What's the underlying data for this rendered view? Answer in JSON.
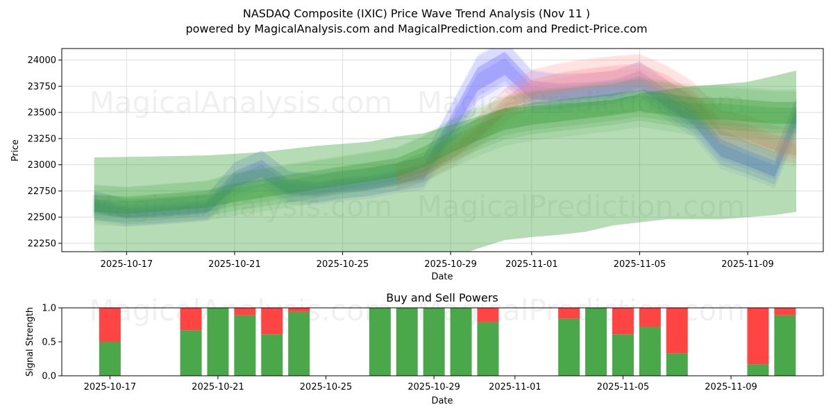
{
  "chart_data": [
    {
      "type": "area",
      "title": "NASDAQ Composite (IXIC) Price Wave Trend Analysis (Nov 11 )",
      "subtitle": "powered by MagicalAnalysis.com and MagicalPrediction.com and Predict-Price.com",
      "xlabel": "Date",
      "ylabel": "Price",
      "x_tick_labels": [
        "2025-10-17",
        "2025-10-21",
        "2025-10-25",
        "2025-10-29",
        "2025-11-01",
        "2025-11-05",
        "2025-11-09"
      ],
      "y_tick_labels": [
        "22250",
        "22500",
        "22750",
        "23000",
        "23250",
        "23500",
        "23750",
        "24000"
      ],
      "ylim": [
        22170,
        24110
      ],
      "grid": true,
      "watermarks": [
        "MagicalAnalysis.com",
        "MagicalPrediction.com",
        "MagicalAnalysis.com",
        "MagicalPrediction.com"
      ],
      "series": [
        {
          "name": "blue waves",
          "color": "#6666ff",
          "x": [
            0.8,
            2,
            3,
            4,
            5,
            6,
            7,
            8,
            9,
            10,
            11,
            12,
            13,
            14,
            15,
            16,
            17,
            18,
            19,
            20,
            21,
            22,
            23,
            24,
            25,
            26,
            26.8
          ],
          "center": [
            22600,
            22540,
            22550,
            22570,
            22590,
            22850,
            22950,
            22780,
            22760,
            22800,
            22820,
            22870,
            22920,
            23350,
            23800,
            23950,
            23700,
            23680,
            23700,
            23720,
            23800,
            23620,
            23450,
            23150,
            23050,
            22950,
            23450
          ],
          "spread": [
            90,
            80,
            80,
            80,
            80,
            110,
            120,
            100,
            90,
            90,
            90,
            90,
            100,
            140,
            160,
            160,
            130,
            120,
            110,
            110,
            120,
            120,
            120,
            120,
            110,
            110,
            120
          ]
        },
        {
          "name": "red waves",
          "color": "#ff8888",
          "x": [
            12,
            13,
            14,
            15,
            16,
            17,
            18,
            19,
            20,
            21,
            22,
            23,
            24,
            25,
            26,
            26.8
          ],
          "center": [
            22880,
            22950,
            23100,
            23300,
            23550,
            23720,
            23780,
            23820,
            23850,
            23870,
            23760,
            23600,
            23350,
            23300,
            23200,
            23150
          ],
          "spread": [
            80,
            80,
            90,
            100,
            110,
            120,
            120,
            120,
            120,
            120,
            120,
            120,
            110,
            110,
            110,
            110
          ]
        },
        {
          "name": "green waves",
          "color": "#2e9a2e",
          "x": [
            0.8,
            2,
            3,
            4,
            5,
            6,
            7,
            8,
            9,
            10,
            11,
            12,
            13,
            14,
            15,
            16,
            17,
            18,
            19,
            20,
            21,
            22,
            23,
            24,
            25,
            26,
            26.8
          ],
          "center": [
            22620,
            22600,
            22620,
            22640,
            22660,
            22720,
            22760,
            22800,
            22840,
            22880,
            22920,
            22960,
            23060,
            23200,
            23320,
            23420,
            23470,
            23500,
            23530,
            23560,
            23600,
            23560,
            23520,
            23520,
            23500,
            23480,
            23480
          ],
          "spread": [
            120,
            120,
            120,
            120,
            120,
            130,
            130,
            130,
            130,
            130,
            130,
            130,
            140,
            150,
            150,
            150,
            150,
            150,
            150,
            150,
            150,
            150,
            150,
            150,
            150,
            150,
            150
          ]
        },
        {
          "name": "wide green band",
          "color": "#2e9a2e",
          "x": [
            0.8,
            3,
            5,
            7,
            9,
            11,
            12,
            13,
            14,
            15,
            16,
            17,
            18,
            19,
            20,
            21,
            22,
            23,
            24,
            25,
            26,
            26.8
          ],
          "upper": [
            23070,
            23080,
            23090,
            23120,
            23180,
            23220,
            23270,
            23300,
            23380,
            23460,
            23540,
            23560,
            23580,
            23600,
            23620,
            23680,
            23720,
            23750,
            23770,
            23790,
            23850,
            23900
          ],
          "lower": [
            22180,
            22150,
            22100,
            22050,
            22000,
            21950,
            21950,
            22000,
            22100,
            22200,
            22280,
            22310,
            22330,
            22360,
            22420,
            22450,
            22480,
            22480,
            22480,
            22500,
            22520,
            22550
          ]
        }
      ]
    },
    {
      "type": "bar",
      "title": "Buy and Sell Powers",
      "xlabel": "Date",
      "ylabel": "Signal Strength",
      "x_tick_labels": [
        "2025-10-17",
        "2025-10-21",
        "2025-10-25",
        "2025-10-29",
        "2025-11-01",
        "2025-11-05",
        "2025-11-09"
      ],
      "y_tick_labels": [
        "0.0",
        "0.5",
        "1.0"
      ],
      "ylim": [
        0,
        1
      ],
      "buy_color": "#4aa84a",
      "sell_color": "#ff4444",
      "bars": [
        {
          "date": "2025-10-17",
          "buy": 0.5,
          "sell": 0.5
        },
        {
          "date": "2025-10-20",
          "buy": 0.67,
          "sell": 0.33
        },
        {
          "date": "2025-10-21",
          "buy": 1.0,
          "sell": 0.0
        },
        {
          "date": "2025-10-22",
          "buy": 0.89,
          "sell": 0.11
        },
        {
          "date": "2025-10-23",
          "buy": 0.61,
          "sell": 0.39
        },
        {
          "date": "2025-10-24",
          "buy": 0.94,
          "sell": 0.06
        },
        {
          "date": "2025-10-27",
          "buy": 1.0,
          "sell": 0.0
        },
        {
          "date": "2025-10-28",
          "buy": 1.0,
          "sell": 0.0
        },
        {
          "date": "2025-10-29",
          "buy": 1.0,
          "sell": 0.0
        },
        {
          "date": "2025-10-30",
          "buy": 1.0,
          "sell": 0.0
        },
        {
          "date": "2025-10-31",
          "buy": 0.79,
          "sell": 0.21
        },
        {
          "date": "2025-11-03",
          "buy": 0.84,
          "sell": 0.16
        },
        {
          "date": "2025-11-04",
          "buy": 1.0,
          "sell": 0.0
        },
        {
          "date": "2025-11-05",
          "buy": 0.61,
          "sell": 0.39
        },
        {
          "date": "2025-11-06",
          "buy": 0.72,
          "sell": 0.28
        },
        {
          "date": "2025-11-07",
          "buy": 0.33,
          "sell": 0.67
        },
        {
          "date": "2025-11-10",
          "buy": 0.17,
          "sell": 0.83
        },
        {
          "date": "2025-11-11",
          "buy": 0.89,
          "sell": 0.11
        }
      ]
    }
  ]
}
